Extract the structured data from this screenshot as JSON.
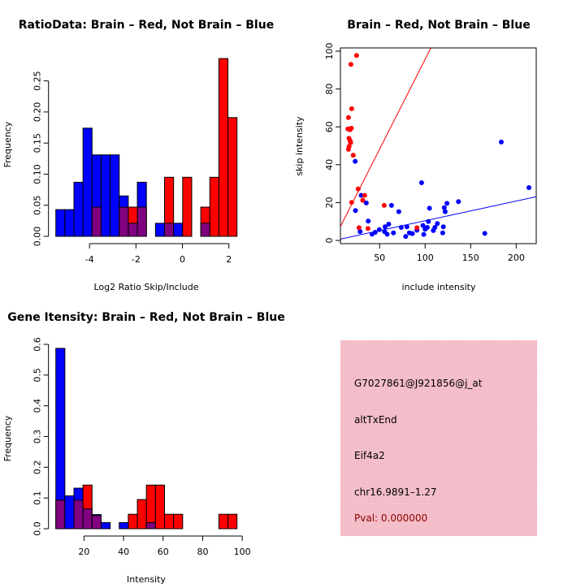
{
  "chart_data": [
    {
      "type": "bar",
      "subtype": "overlaid-histogram",
      "title": "RatioData: Brain – Red, Not Brain – Blue",
      "xlabel": "Log2 Ratio Skip/Include",
      "ylabel": "Frequency",
      "bin_start": -5.45,
      "bin_width": 0.39,
      "xlim": [
        -5.45,
        2.35
      ],
      "ylim": [
        0,
        0.29
      ],
      "xticks": [
        "-4",
        "-2",
        "0",
        "2"
      ],
      "xtick_values": [
        -4,
        -2,
        0,
        2
      ],
      "yticks": [
        "0.00",
        "0.05",
        "0.10",
        "0.15",
        "0.20",
        "0.25"
      ],
      "ytick_values": [
        0,
        0.05,
        0.1,
        0.15,
        0.2,
        0.25
      ],
      "series": [
        {
          "name": "Not Brain",
          "color": "#0000ff",
          "values": [
            0.043,
            0.043,
            0.087,
            0.174,
            0.131,
            0.131,
            0.131,
            0.065,
            0.021,
            0.087,
            0,
            0.021,
            0.021,
            0.021,
            0,
            0,
            0.021,
            0,
            0,
            0
          ]
        },
        {
          "name": "Brain",
          "color": "#ff0000",
          "values": [
            0,
            0,
            0,
            0,
            0.047,
            0,
            0,
            0.047,
            0.047,
            0.047,
            0,
            0,
            0.095,
            0,
            0.095,
            0,
            0.047,
            0.095,
            0.286,
            0.191
          ]
        }
      ],
      "overlap_color": "#800080"
    },
    {
      "type": "scatter",
      "title": "Brain – Red, Not Brain – Blue",
      "xlabel": "include intensity",
      "ylabel": "skip intensity",
      "xlim": [
        7,
        222
      ],
      "ylim": [
        -1.7,
        101.7
      ],
      "xticks": [
        "50",
        "100",
        "150",
        "200"
      ],
      "xtick_values": [
        50,
        100,
        150,
        200
      ],
      "yticks": [
        "0",
        "20",
        "40",
        "60",
        "80",
        "100"
      ],
      "ytick_values": [
        0,
        20,
        40,
        60,
        80,
        100
      ],
      "series": [
        {
          "name": "Brain",
          "color": "#ff0000",
          "fit": {
            "intercept": 0.7,
            "slope": 0.95
          },
          "points": [
            [
              24.7,
              97.7
            ],
            [
              18.5,
              93
            ],
            [
              19.3,
              69.6
            ],
            [
              15.8,
              64.9
            ],
            [
              15.2,
              58.9
            ],
            [
              19,
              59.3
            ],
            [
              17.6,
              58.5
            ],
            [
              16.4,
              53.9
            ],
            [
              17.6,
              52.7
            ],
            [
              18.2,
              51.6
            ],
            [
              16.5,
              49.6
            ],
            [
              15.8,
              48.1
            ],
            [
              21.1,
              45
            ],
            [
              26.5,
              27.2
            ],
            [
              33.6,
              23.8
            ],
            [
              31.5,
              21.2
            ],
            [
              19.3,
              20.1
            ],
            [
              55,
              18.5
            ],
            [
              27.4,
              6.7
            ],
            [
              37.2,
              6.3
            ],
            [
              91,
              6.7
            ]
          ]
        },
        {
          "name": "Not Brain",
          "color": "#0000ff",
          "fit": {
            "intercept": 0,
            "slope": 0.104
          },
          "points": [
            [
              23.2,
              41.8
            ],
            [
              29.8,
              23.8
            ],
            [
              35.4,
              19.8
            ],
            [
              23.5,
              15.8
            ],
            [
              37.5,
              10.2
            ],
            [
              28.6,
              4.7
            ],
            [
              41.7,
              3.3
            ],
            [
              45.2,
              4.3
            ],
            [
              49.7,
              5.7
            ],
            [
              56,
              7.2
            ],
            [
              55.4,
              4.7
            ],
            [
              58.3,
              3.3
            ],
            [
              60,
              8.6
            ],
            [
              65.2,
              4
            ],
            [
              63.1,
              18.5
            ],
            [
              71.1,
              15.2
            ],
            [
              73.8,
              6.9
            ],
            [
              78.6,
              2.1
            ],
            [
              80,
              7.2
            ],
            [
              82.7,
              4
            ],
            [
              86,
              3.6
            ],
            [
              91,
              5.4
            ],
            [
              96.1,
              30.5
            ],
            [
              97.6,
              7.9
            ],
            [
              98.5,
              3.2
            ],
            [
              100,
              5.9
            ],
            [
              102.4,
              6.9
            ],
            [
              103.6,
              10
            ],
            [
              104.8,
              17
            ],
            [
              109,
              5.2
            ],
            [
              110.7,
              6.9
            ],
            [
              113.4,
              8.9
            ],
            [
              120,
              7.2
            ],
            [
              119.3,
              4
            ],
            [
              121,
              17.3
            ],
            [
              122,
              15.2
            ],
            [
              124,
              19.6
            ],
            [
              136.6,
              20.5
            ],
            [
              165.5,
              3.7
            ],
            [
              183.6,
              52
            ],
            [
              214,
              27.9
            ]
          ]
        }
      ]
    },
    {
      "type": "bar",
      "subtype": "overlaid-histogram",
      "title": "Gene Itensity: Brain – Red, Not Brain – Blue",
      "xlabel": "Intensity",
      "ylabel": "Frequency",
      "bin_start": 5.75,
      "bin_width": 4.58,
      "xlim": [
        5.75,
        97.35
      ],
      "ylim": [
        0,
        0.6
      ],
      "xticks": [
        "20",
        "40",
        "60",
        "80",
        "100"
      ],
      "xtick_values": [
        20,
        40,
        60,
        80,
        100
      ],
      "yticks": [
        "0.0",
        "0.1",
        "0.2",
        "0.3",
        "0.4",
        "0.5",
        "0.6"
      ],
      "ytick_values": [
        0,
        0.1,
        0.2,
        0.3,
        0.4,
        0.5,
        0.6
      ],
      "series": [
        {
          "name": "Not Brain",
          "color": "#0000ff",
          "values": [
            0.587,
            0.107,
            0.132,
            0.065,
            0.046,
            0.02,
            0,
            0.02,
            0,
            0,
            0.02,
            0,
            0,
            0,
            0,
            0,
            0,
            0,
            0,
            0
          ]
        },
        {
          "name": "Brain",
          "color": "#ff0000",
          "values": [
            0.093,
            0,
            0.093,
            0.142,
            0.043,
            0,
            0,
            0,
            0.047,
            0.095,
            0.142,
            0.142,
            0.047,
            0.047,
            0,
            0,
            0,
            0,
            0.047,
            0.047
          ]
        }
      ],
      "overlap_color": "#800080"
    }
  ],
  "info_panel": {
    "background": "#f5c0cb",
    "lines": [
      "G7027861@J921856@j_at",
      "altTxEnd",
      "Eif4a2",
      "chr16.9891–1.27"
    ],
    "pval": "Pval: 0.000000",
    "pval_color": "#8b0000"
  }
}
